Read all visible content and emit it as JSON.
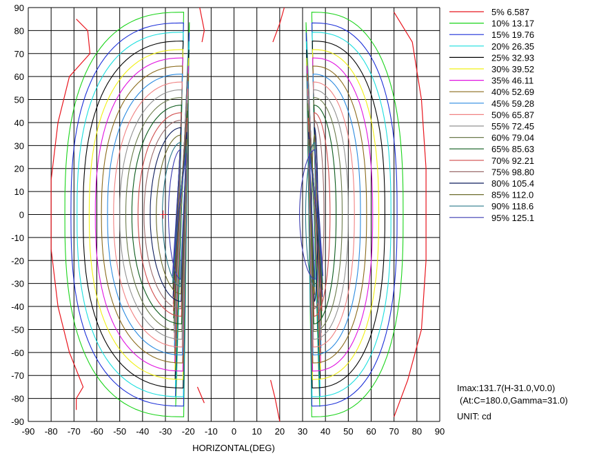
{
  "chart_data": {
    "type": "contour",
    "xlabel": "HORIZONTAL(DEG)",
    "ylabel": "",
    "xlim": [
      -90,
      90
    ],
    "ylim": [
      -90,
      90
    ],
    "x_ticks": [
      "-90",
      "-80",
      "-70",
      "-60",
      "-50",
      "-40",
      "-30",
      "-20",
      "-10",
      "0",
      "10",
      "20",
      "30",
      "40",
      "50",
      "60",
      "70",
      "80",
      "90"
    ],
    "y_ticks": [
      "90",
      "80",
      "70",
      "60",
      "50",
      "40",
      "30",
      "20",
      "10",
      "0",
      "-10",
      "-20",
      "-30",
      "-40",
      "-50",
      "-60",
      "-70",
      "-80",
      "-90"
    ],
    "grid": true,
    "legend_position": "right",
    "peak_marker": {
      "x": -31,
      "y": 0
    },
    "series": [
      {
        "name": "5% 6.587",
        "color": "#e8141c",
        "value": 6.587
      },
      {
        "name": "10% 13.17",
        "color": "#19d419",
        "value": 13.17
      },
      {
        "name": "15% 19.76",
        "color": "#1a2ed8",
        "value": 19.76
      },
      {
        "name": "20% 26.35",
        "color": "#18dede",
        "value": 26.35
      },
      {
        "name": "25% 32.93",
        "color": "#000000",
        "value": 32.93
      },
      {
        "name": "30% 39.52",
        "color": "#f0f010",
        "value": 39.52
      },
      {
        "name": "35% 46.11",
        "color": "#e010e0",
        "value": 46.11
      },
      {
        "name": "40% 52.69",
        "color": "#8a6a1a",
        "value": 52.69
      },
      {
        "name": "45% 59.28",
        "color": "#2a8ae0",
        "value": 59.28
      },
      {
        "name": "50% 65.87",
        "color": "#f08080",
        "value": 65.87
      },
      {
        "name": "55% 72.45",
        "color": "#909090",
        "value": 72.45
      },
      {
        "name": "60% 79.04",
        "color": "#6a7a4a",
        "value": 79.04
      },
      {
        "name": "65% 85.63",
        "color": "#0a5a1a",
        "value": 85.63
      },
      {
        "name": "70% 92.21",
        "color": "#d04a4a",
        "value": 92.21
      },
      {
        "name": "75% 98.80",
        "color": "#9a6a6a",
        "value": 98.8
      },
      {
        "name": "80% 105.4",
        "color": "#0a1a5a",
        "value": 105.4
      },
      {
        "name": "85% 112.0",
        "color": "#6a6a2a",
        "value": 112.0
      },
      {
        "name": "90% 118.6",
        "color": "#2a7a8a",
        "value": 118.6
      },
      {
        "name": "95% 125.1",
        "color": "#3a3ab0",
        "value": 125.1
      }
    ],
    "annotations": {
      "imax": "Imax:131.7(H-31.0,V0.0)",
      "at": "(At:C=180.0,Gamma=31.0)",
      "unit": "UNIT: cd"
    }
  }
}
